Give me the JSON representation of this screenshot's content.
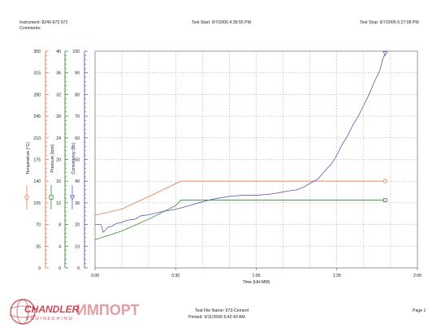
{
  "header": {
    "instrument": "Instrument: 8240-973 972",
    "comments": "Comments:",
    "test_start": "Test Start: 9/7/2006 4:38:55 PM",
    "test_stop": "Test Stop: 9/7/2006 6:27:08 PM"
  },
  "footer": {
    "file_name": "Test File Name: 973-Cement",
    "printed": "Printed: 9/11/2006 6:42:43 AM",
    "page": "Page 1",
    "logo_brand": "CHANDLER",
    "logo_sub": "ENGINEERING",
    "watermark": "ИМПОРТ"
  },
  "colors": {
    "temperature": "#e8744c",
    "pressure": "#2e8b2e",
    "consistency": "#5a5ab0",
    "grid": "#9a9a9a",
    "watermark": "#c0283a"
  },
  "chart_data": {
    "type": "line",
    "xlabel": "Time (HH:MM)",
    "x_ticks": [
      "0:00",
      "0:30",
      "1:00",
      "1:30",
      "2:00"
    ],
    "xlim_minutes": [
      0,
      120
    ],
    "grid": true,
    "axes": [
      {
        "key": "temperature",
        "label": "Temperature (°C)",
        "min": 0,
        "max": 350,
        "ticks": [
          "0",
          "35",
          "70",
          "105",
          "140",
          "175",
          "210",
          "245",
          "280",
          "315",
          "350"
        ]
      },
      {
        "key": "pressure",
        "label": "Pressure (kpsi)",
        "min": 0,
        "max": 40,
        "ticks": [
          "0",
          "4",
          "8",
          "12",
          "16",
          "20",
          "24",
          "28",
          "32",
          "36",
          "40"
        ]
      },
      {
        "key": "consistency",
        "label": "Consistency (Bc)",
        "min": 0,
        "max": 100,
        "ticks": [
          "0",
          "10",
          "20",
          "30",
          "40",
          "50",
          "60",
          "70",
          "80",
          "90",
          "100"
        ]
      }
    ],
    "series": [
      {
        "name": "Temperature (°C)",
        "axis": "temperature",
        "marker": "circle",
        "x": [
          0,
          10,
          20,
          30,
          32,
          40,
          60,
          80,
          100,
          108
        ],
        "y": [
          85,
          95,
          115,
          136,
          140,
          140,
          140,
          140,
          140,
          140
        ]
      },
      {
        "name": "Pressure (kpsi)",
        "axis": "pressure",
        "marker": "square",
        "x": [
          0,
          5,
          10,
          20,
          30,
          32,
          40,
          60,
          80,
          100,
          108
        ],
        "y": [
          5.2,
          6.0,
          6.8,
          9.0,
          11.5,
          12.5,
          12.5,
          12.5,
          12.5,
          12.5,
          12.5
        ]
      },
      {
        "name": "Consistency (Bc)",
        "axis": "consistency",
        "marker": "triangle",
        "x": [
          0,
          2,
          2.5,
          3,
          4,
          5,
          6,
          8,
          10,
          12,
          15,
          17,
          20,
          25,
          30,
          33,
          40,
          45,
          50,
          55,
          60,
          65,
          70,
          72,
          75,
          78,
          80,
          83,
          85,
          88,
          90,
          92,
          94,
          96,
          98,
          100,
          102,
          104,
          106,
          107,
          108
        ],
        "y": [
          20,
          20,
          19,
          16.5,
          17.5,
          19,
          19,
          20.5,
          21,
          22,
          22.5,
          24,
          24.5,
          26,
          27,
          28,
          30.5,
          32,
          33,
          33.5,
          33.5,
          34,
          35,
          35.5,
          36,
          37.5,
          39,
          41,
          44,
          48,
          52,
          57,
          61,
          66,
          70,
          75,
          80,
          86,
          91,
          96,
          99
        ]
      }
    ]
  }
}
